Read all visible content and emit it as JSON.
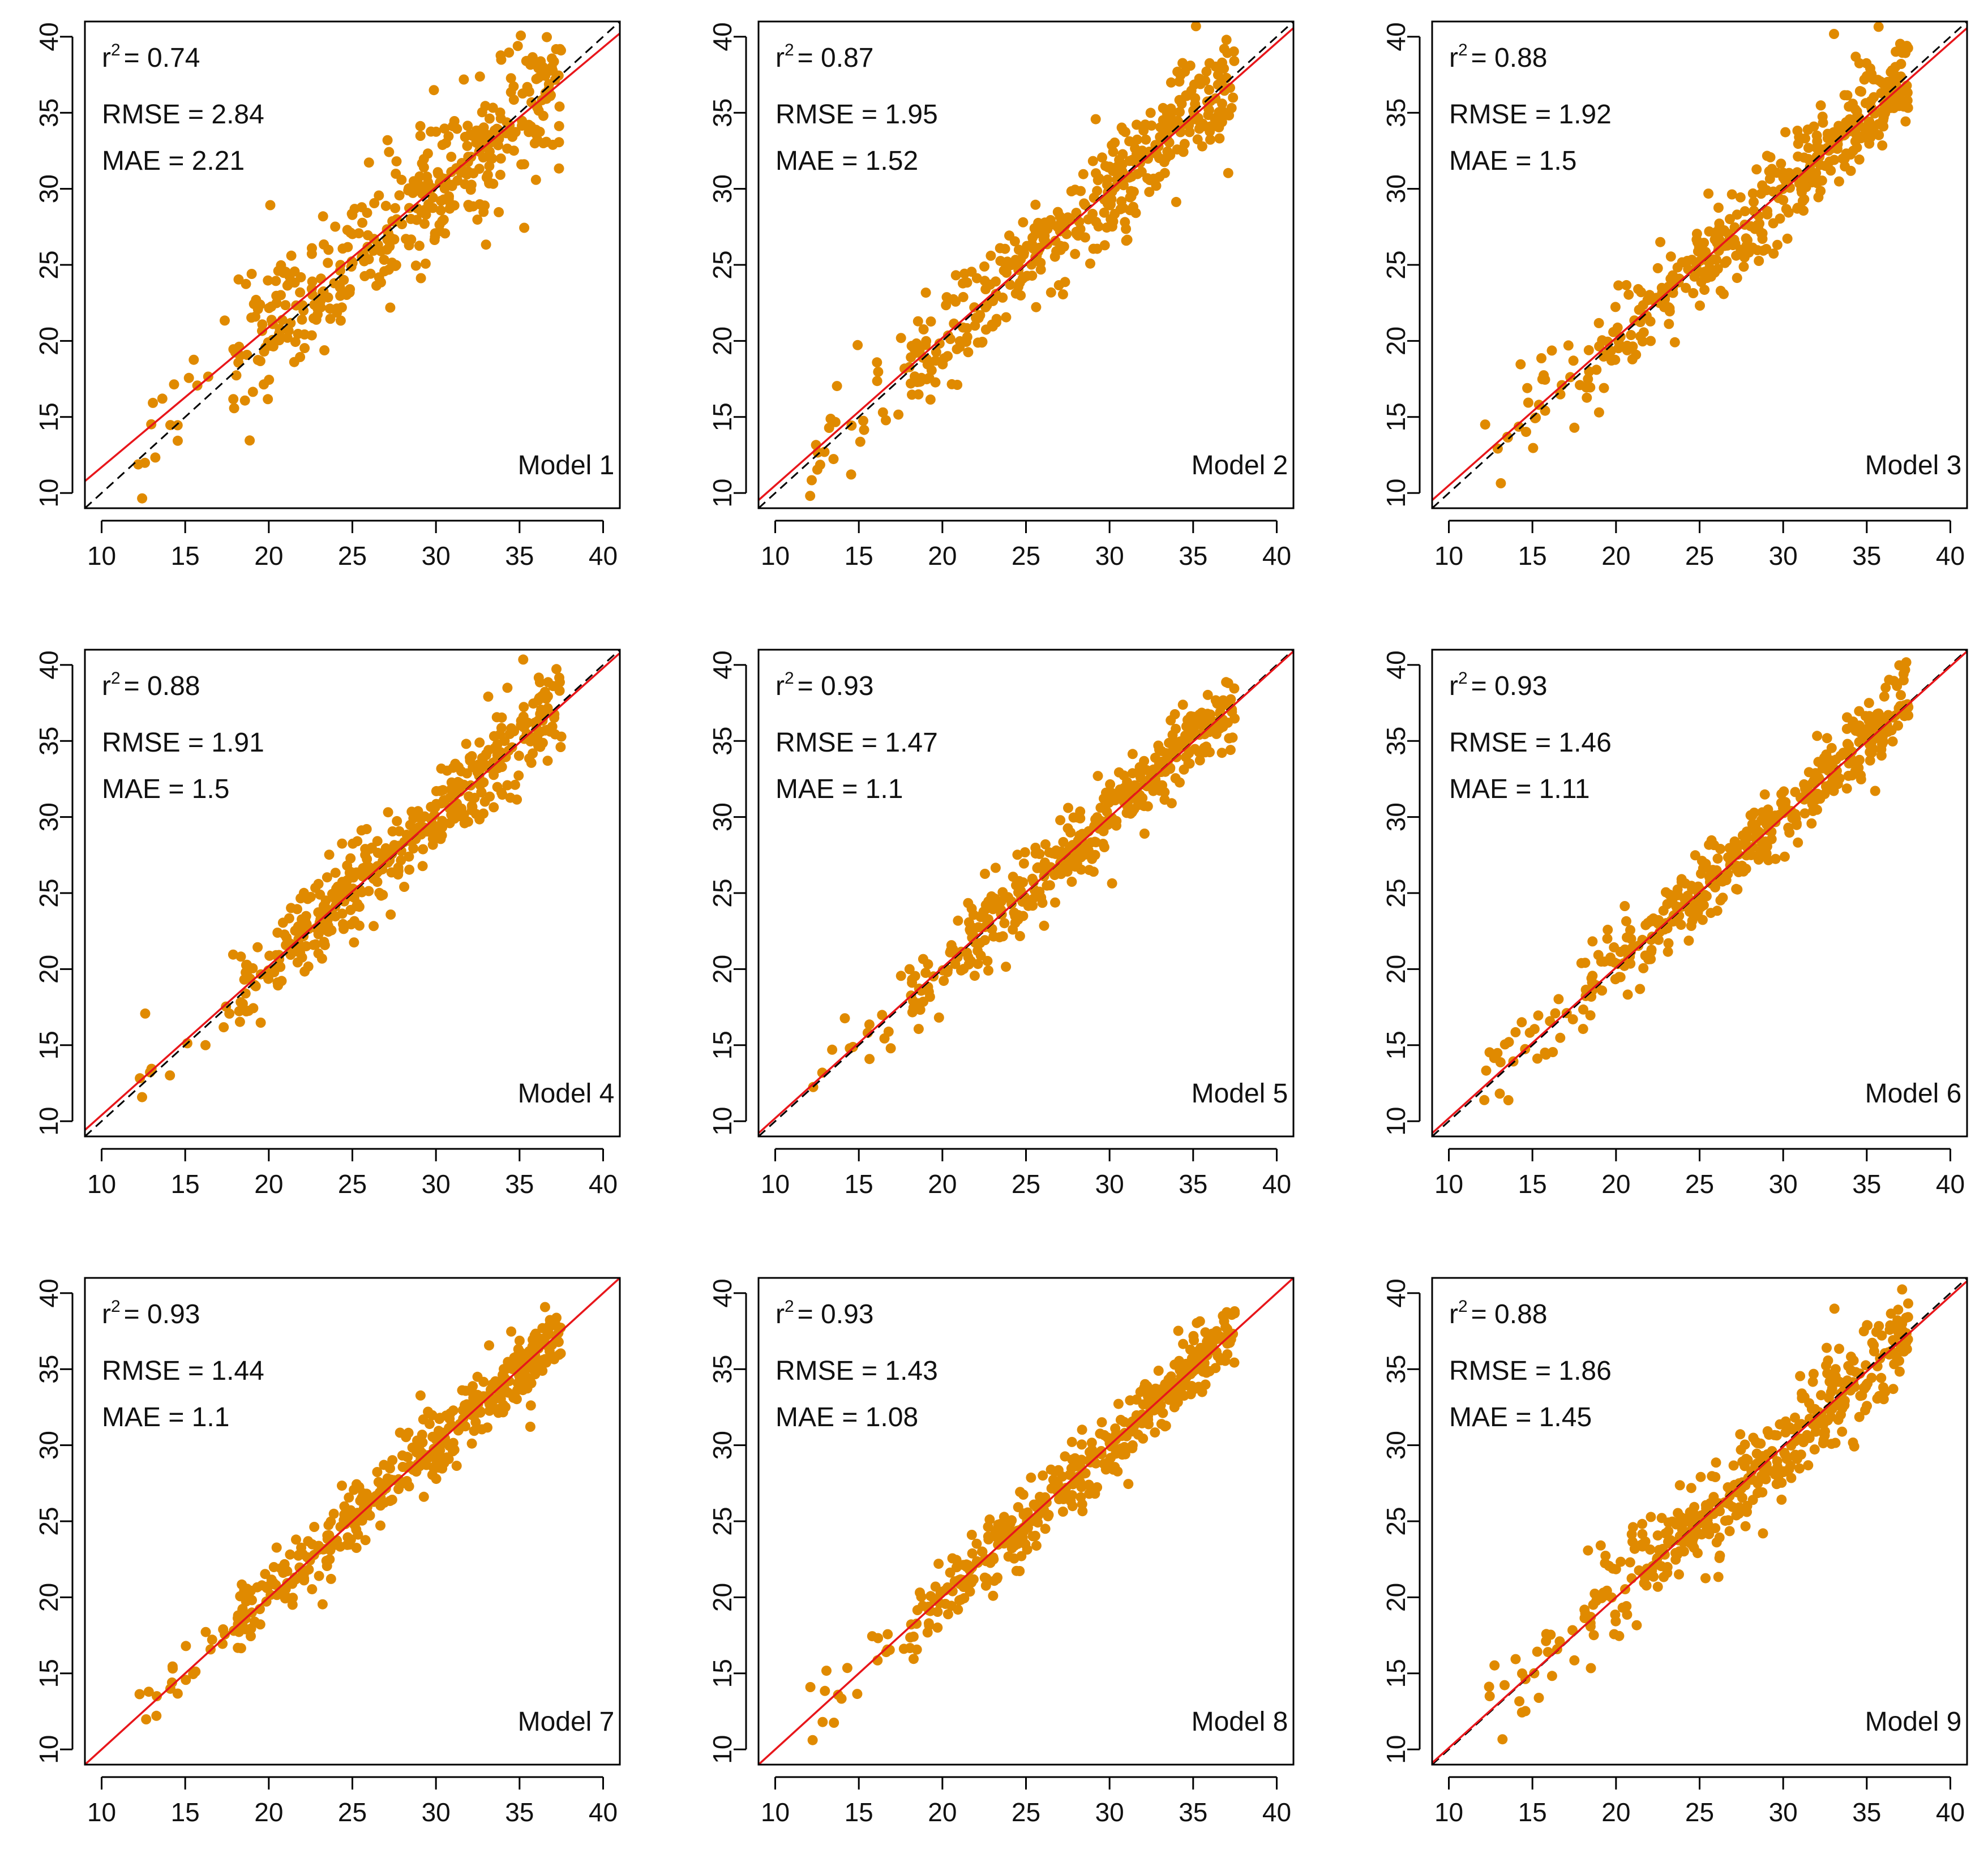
{
  "colors": {
    "point": "#E08A00",
    "fit_line": "#E8161B",
    "identity_line": "#000000",
    "frame": "#000000"
  },
  "chart_data": [
    {
      "type": "scatter",
      "title": "Model 1",
      "stats": {
        "r2_label": "r",
        "r2_sup": "2",
        "r2": "= 0.74",
        "rmse": "RMSE = 2.84",
        "mae": "MAE = 2.21"
      },
      "fit": {
        "slope": 0.92,
        "intercept": 2.5
      },
      "spread": 2.8,
      "seed": 11,
      "n_points": 420,
      "xlim": [
        9,
        41
      ],
      "ylim": [
        9,
        41
      ],
      "xticks": [
        "10",
        "15",
        "20",
        "25",
        "30",
        "35",
        "40"
      ],
      "yticks": [
        "10",
        "15",
        "20",
        "25",
        "30",
        "35",
        "40"
      ],
      "xlabel": "",
      "ylabel": ""
    },
    {
      "type": "scatter",
      "title": "Model 2",
      "stats": {
        "r2_label": "r",
        "r2_sup": "2",
        "r2": "= 0.87",
        "rmse": "RMSE = 1.95",
        "mae": "MAE = 1.52"
      },
      "fit": {
        "slope": 0.97,
        "intercept": 0.8
      },
      "spread": 1.95,
      "seed": 22,
      "n_points": 420,
      "xlim": [
        9,
        41
      ],
      "ylim": [
        9,
        41
      ],
      "xticks": [
        "10",
        "15",
        "20",
        "25",
        "30",
        "35",
        "40"
      ],
      "yticks": [
        "10",
        "15",
        "20",
        "25",
        "30",
        "35",
        "40"
      ],
      "xlabel": "",
      "ylabel": ""
    },
    {
      "type": "scatter",
      "title": "Model 3",
      "stats": {
        "r2_label": "r",
        "r2_sup": "2",
        "r2": "= 0.88",
        "rmse": "RMSE = 1.92",
        "mae": "MAE = 1.5"
      },
      "fit": {
        "slope": 0.97,
        "intercept": 0.8
      },
      "spread": 1.9,
      "seed": 33,
      "n_points": 420,
      "xlim": [
        9,
        41
      ],
      "ylim": [
        9,
        41
      ],
      "xticks": [
        "10",
        "15",
        "20",
        "25",
        "30",
        "35",
        "40"
      ],
      "yticks": [
        "10",
        "15",
        "20",
        "25",
        "30",
        "35",
        "40"
      ],
      "xlabel": "",
      "ylabel": ""
    },
    {
      "type": "scatter",
      "title": "Model 4",
      "stats": {
        "r2_label": "r",
        "r2_sup": "2",
        "r2": "= 0.88",
        "rmse": "RMSE = 1.91",
        "mae": "MAE = 1.5"
      },
      "fit": {
        "slope": 0.98,
        "intercept": 0.6
      },
      "spread": 1.9,
      "seed": 44,
      "n_points": 420,
      "xlim": [
        9,
        41
      ],
      "ylim": [
        9,
        41
      ],
      "xticks": [
        "10",
        "15",
        "20",
        "25",
        "30",
        "35",
        "40"
      ],
      "yticks": [
        "10",
        "15",
        "20",
        "25",
        "30",
        "35",
        "40"
      ],
      "xlabel": "",
      "ylabel": ""
    },
    {
      "type": "scatter",
      "title": "Model 5",
      "stats": {
        "r2_label": "r",
        "r2_sup": "2",
        "r2": "= 0.93",
        "rmse": "RMSE = 1.47",
        "mae": "MAE = 1.1"
      },
      "fit": {
        "slope": 0.99,
        "intercept": 0.3
      },
      "spread": 1.45,
      "seed": 55,
      "n_points": 420,
      "xlim": [
        9,
        41
      ],
      "ylim": [
        9,
        41
      ],
      "xticks": [
        "10",
        "15",
        "20",
        "25",
        "30",
        "35",
        "40"
      ],
      "yticks": [
        "10",
        "15",
        "20",
        "25",
        "30",
        "35",
        "40"
      ],
      "xlabel": "",
      "ylabel": ""
    },
    {
      "type": "scatter",
      "title": "Model 6",
      "stats": {
        "r2_label": "r",
        "r2_sup": "2",
        "r2": "= 0.93",
        "rmse": "RMSE = 1.46",
        "mae": "MAE = 1.11"
      },
      "fit": {
        "slope": 0.99,
        "intercept": 0.3
      },
      "spread": 1.45,
      "seed": 66,
      "n_points": 420,
      "xlim": [
        9,
        41
      ],
      "ylim": [
        9,
        41
      ],
      "xticks": [
        "10",
        "15",
        "20",
        "25",
        "30",
        "35",
        "40"
      ],
      "yticks": [
        "10",
        "15",
        "20",
        "25",
        "30",
        "35",
        "40"
      ],
      "xlabel": "",
      "ylabel": ""
    },
    {
      "type": "scatter",
      "title": "Model 7",
      "stats": {
        "r2_label": "r",
        "r2_sup": "2",
        "r2": "= 0.93",
        "rmse": "RMSE = 1.44",
        "mae": "MAE = 1.1"
      },
      "fit": {
        "slope": 1.0,
        "intercept": 0.0
      },
      "spread": 1.42,
      "seed": 77,
      "n_points": 420,
      "xlim": [
        9,
        41
      ],
      "ylim": [
        9,
        41
      ],
      "xticks": [
        "10",
        "15",
        "20",
        "25",
        "30",
        "35",
        "40"
      ],
      "yticks": [
        "10",
        "15",
        "20",
        "25",
        "30",
        "35",
        "40"
      ],
      "xlabel": "",
      "ylabel": ""
    },
    {
      "type": "scatter",
      "title": "Model 8",
      "stats": {
        "r2_label": "r",
        "r2_sup": "2",
        "r2": "= 0.93",
        "rmse": "RMSE = 1.43",
        "mae": "MAE = 1.08"
      },
      "fit": {
        "slope": 1.0,
        "intercept": 0.0
      },
      "spread": 1.4,
      "seed": 88,
      "n_points": 420,
      "xlim": [
        9,
        41
      ],
      "ylim": [
        9,
        41
      ],
      "xticks": [
        "10",
        "15",
        "20",
        "25",
        "30",
        "35",
        "40"
      ],
      "yticks": [
        "10",
        "15",
        "20",
        "25",
        "30",
        "35",
        "40"
      ],
      "xlabel": "",
      "ylabel": ""
    },
    {
      "type": "scatter",
      "title": "Model 9",
      "stats": {
        "r2_label": "r",
        "r2_sup": "2",
        "r2": "= 0.88",
        "rmse": "RMSE = 1.86",
        "mae": "MAE = 1.45"
      },
      "fit": {
        "slope": 0.99,
        "intercept": 0.2
      },
      "spread": 1.85,
      "seed": 99,
      "n_points": 420,
      "xlim": [
        9,
        41
      ],
      "ylim": [
        9,
        41
      ],
      "xticks": [
        "10",
        "15",
        "20",
        "25",
        "30",
        "35",
        "40"
      ],
      "yticks": [
        "10",
        "15",
        "20",
        "25",
        "30",
        "35",
        "40"
      ],
      "xlabel": "",
      "ylabel": ""
    }
  ]
}
